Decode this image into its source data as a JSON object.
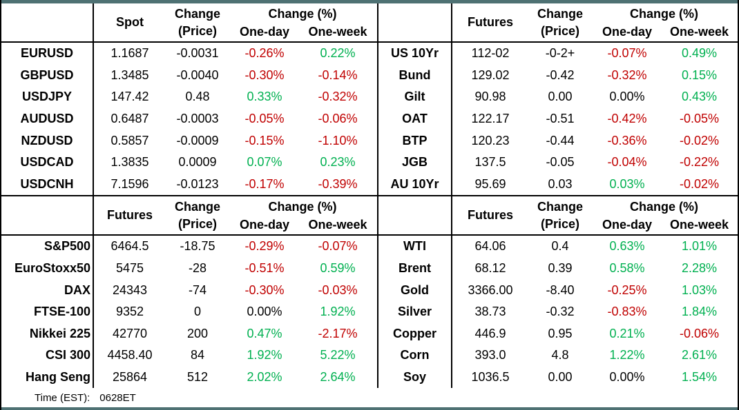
{
  "theme": {
    "positive_color": "#00B050",
    "negative_color": "#C00000",
    "neutral_color": "#000000",
    "accent_bar_color": "#4E7173",
    "grid_border_color": "#000000"
  },
  "header_labels": {
    "change_line1": "Change",
    "change_line2": "(Price)",
    "pct_group": "Change (%)",
    "one_day": "One-day",
    "one_week": "One-week"
  },
  "footer": {
    "time_label": "Time (EST):",
    "time_value": "0628ET"
  },
  "tables": {
    "fx": {
      "value_header": "Spot",
      "rows": [
        {
          "label": "EURUSD",
          "price": "1.1687",
          "change": "-0.0031",
          "one_day": "-0.26%",
          "one_day_dir": "neg",
          "one_week": "0.22%",
          "one_week_dir": "pos"
        },
        {
          "label": "GBPUSD",
          "price": "1.3485",
          "change": "-0.0040",
          "one_day": "-0.30%",
          "one_day_dir": "neg",
          "one_week": "-0.14%",
          "one_week_dir": "neg"
        },
        {
          "label": "USDJPY",
          "price": "147.42",
          "change": "0.48",
          "one_day": "0.33%",
          "one_day_dir": "pos",
          "one_week": "-0.32%",
          "one_week_dir": "neg"
        },
        {
          "label": "AUDUSD",
          "price": "0.6487",
          "change": "-0.0003",
          "one_day": "-0.05%",
          "one_day_dir": "neg",
          "one_week": "-0.06%",
          "one_week_dir": "neg"
        },
        {
          "label": "NZDUSD",
          "price": "0.5857",
          "change": "-0.0009",
          "one_day": "-0.15%",
          "one_day_dir": "neg",
          "one_week": "-1.10%",
          "one_week_dir": "neg"
        },
        {
          "label": "USDCAD",
          "price": "1.3835",
          "change": "0.0009",
          "one_day": "0.07%",
          "one_day_dir": "pos",
          "one_week": "0.23%",
          "one_week_dir": "pos"
        },
        {
          "label": "USDCNH",
          "price": "7.1596",
          "change": "-0.0123",
          "one_day": "-0.17%",
          "one_day_dir": "neg",
          "one_week": "-0.39%",
          "one_week_dir": "neg"
        }
      ]
    },
    "bonds": {
      "value_header": "Futures",
      "rows": [
        {
          "label": "US 10Yr",
          "price": "112-02",
          "change": "-0-2+",
          "one_day": "-0.07%",
          "one_day_dir": "neg",
          "one_week": "0.49%",
          "one_week_dir": "pos"
        },
        {
          "label": "Bund",
          "price": "129.02",
          "change": "-0.42",
          "one_day": "-0.32%",
          "one_day_dir": "neg",
          "one_week": "0.15%",
          "one_week_dir": "pos"
        },
        {
          "label": "Gilt",
          "price": "90.98",
          "change": "0.00",
          "one_day": "0.00%",
          "one_day_dir": "neu",
          "one_week": "0.43%",
          "one_week_dir": "pos"
        },
        {
          "label": "OAT",
          "price": "122.17",
          "change": "-0.51",
          "one_day": "-0.42%",
          "one_day_dir": "neg",
          "one_week": "-0.05%",
          "one_week_dir": "neg"
        },
        {
          "label": "BTP",
          "price": "120.23",
          "change": "-0.44",
          "one_day": "-0.36%",
          "one_day_dir": "neg",
          "one_week": "-0.02%",
          "one_week_dir": "neg"
        },
        {
          "label": "JGB",
          "price": "137.5",
          "change": "-0.05",
          "one_day": "-0.04%",
          "one_day_dir": "neg",
          "one_week": "-0.22%",
          "one_week_dir": "neg"
        },
        {
          "label": "AU 10Yr",
          "price": "95.69",
          "change": "0.03",
          "one_day": "0.03%",
          "one_day_dir": "pos",
          "one_week": "-0.02%",
          "one_week_dir": "neg"
        }
      ]
    },
    "equities": {
      "value_header": "Futures",
      "rows": [
        {
          "label": "S&P500",
          "price": "6464.5",
          "change": "-18.75",
          "one_day": "-0.29%",
          "one_day_dir": "neg",
          "one_week": "-0.07%",
          "one_week_dir": "neg"
        },
        {
          "label": "EuroStoxx50",
          "price": "5475",
          "change": "-28",
          "one_day": "-0.51%",
          "one_day_dir": "neg",
          "one_week": "0.59%",
          "one_week_dir": "pos"
        },
        {
          "label": "DAX",
          "price": "24343",
          "change": "-74",
          "one_day": "-0.30%",
          "one_day_dir": "neg",
          "one_week": "-0.03%",
          "one_week_dir": "neg"
        },
        {
          "label": "FTSE-100",
          "price": "9352",
          "change": "0",
          "one_day": "0.00%",
          "one_day_dir": "neu",
          "one_week": "1.92%",
          "one_week_dir": "pos"
        },
        {
          "label": "Nikkei 225",
          "price": "42770",
          "change": "200",
          "one_day": "0.47%",
          "one_day_dir": "pos",
          "one_week": "-2.17%",
          "one_week_dir": "neg"
        },
        {
          "label": "CSI 300",
          "price": "4458.40",
          "change": "84",
          "one_day": "1.92%",
          "one_day_dir": "pos",
          "one_week": "5.22%",
          "one_week_dir": "pos"
        },
        {
          "label": "Hang Seng",
          "price": "25864",
          "change": "512",
          "one_day": "2.02%",
          "one_day_dir": "pos",
          "one_week": "2.64%",
          "one_week_dir": "pos"
        }
      ]
    },
    "commodities": {
      "value_header": "Futures",
      "rows": [
        {
          "label": "WTI",
          "price": "64.06",
          "change": "0.4",
          "one_day": "0.63%",
          "one_day_dir": "pos",
          "one_week": "1.01%",
          "one_week_dir": "pos"
        },
        {
          "label": "Brent",
          "price": "68.12",
          "change": "0.39",
          "one_day": "0.58%",
          "one_day_dir": "pos",
          "one_week": "2.28%",
          "one_week_dir": "pos"
        },
        {
          "label": "Gold",
          "price": "3366.00",
          "change": "-8.40",
          "one_day": "-0.25%",
          "one_day_dir": "neg",
          "one_week": "1.03%",
          "one_week_dir": "pos"
        },
        {
          "label": "Silver",
          "price": "38.73",
          "change": "-0.32",
          "one_day": "-0.83%",
          "one_day_dir": "neg",
          "one_week": "1.84%",
          "one_week_dir": "pos"
        },
        {
          "label": "Copper",
          "price": "446.9",
          "change": "0.95",
          "one_day": "0.21%",
          "one_day_dir": "pos",
          "one_week": "-0.06%",
          "one_week_dir": "neg"
        },
        {
          "label": "Corn",
          "price": "393.0",
          "change": "4.8",
          "one_day": "1.22%",
          "one_day_dir": "pos",
          "one_week": "2.61%",
          "one_week_dir": "pos"
        },
        {
          "label": "Soy",
          "price": "1036.5",
          "change": "0.00",
          "one_day": "0.00%",
          "one_day_dir": "neu",
          "one_week": "1.54%",
          "one_week_dir": "pos"
        }
      ]
    }
  }
}
